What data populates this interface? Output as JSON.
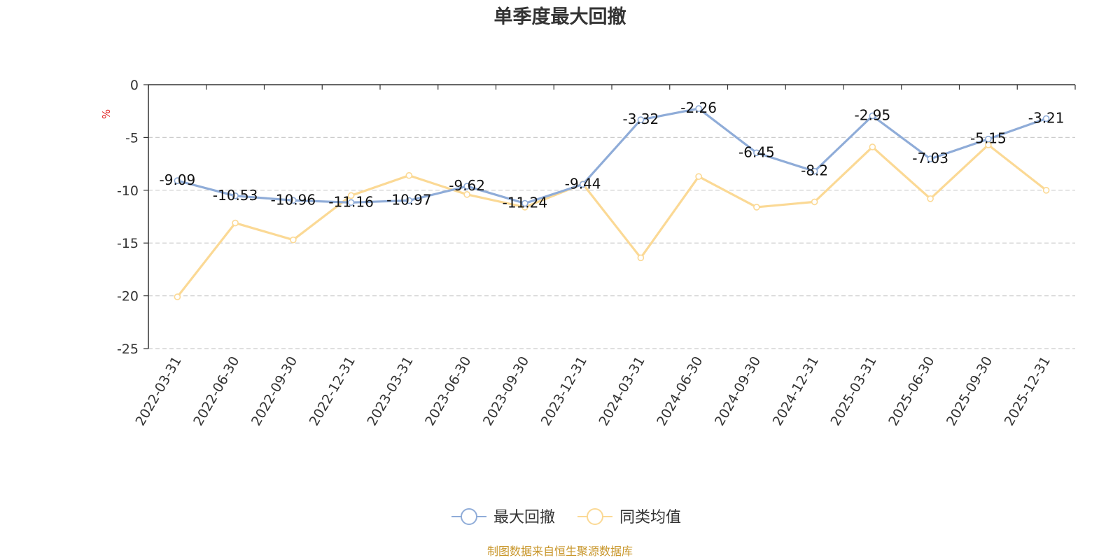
{
  "chart_data": {
    "type": "line",
    "title": "单季度最大回撤",
    "ylabel": "%",
    "xlabel": "",
    "ylim": [
      -25,
      0
    ],
    "yticks": [
      0,
      -5,
      -10,
      -15,
      -20,
      -25
    ],
    "ytick_labels": [
      "0",
      "-5",
      "-10",
      "-15",
      "-20",
      "-25"
    ],
    "grid": true,
    "legend_position": "bottom-center",
    "categories": [
      "2022-03-31",
      "2022-06-30",
      "2022-09-30",
      "2022-12-31",
      "2023-03-31",
      "2023-06-30",
      "2023-09-30",
      "2023-12-31",
      "2024-03-31",
      "2024-06-30",
      "2024-09-30",
      "2024-12-31",
      "2025-03-31",
      "2025-06-30",
      "2025-09-30",
      "2025-12-31"
    ],
    "series": [
      {
        "name": "最大回撤",
        "color": "#8facd8",
        "show_labels": true,
        "values": [
          -9.09,
          -10.53,
          -10.96,
          -11.16,
          -10.97,
          -9.62,
          -11.24,
          -9.44,
          -3.32,
          -2.26,
          -6.45,
          -8.2,
          -2.95,
          -7.03,
          -5.15,
          -3.21
        ],
        "labels": [
          "-9.09",
          "-10.53",
          "-10.96",
          "-11.16",
          "-10.97",
          "-9.62",
          "-11.24",
          "-9.44",
          "-3.32",
          "-2.26",
          "-6.45",
          "-8.2",
          "-2.95",
          "-7.03",
          "-5.15",
          "-3.21"
        ]
      },
      {
        "name": "同类均值",
        "color": "#fbd995",
        "show_labels": false,
        "values": [
          -20.1,
          -13.1,
          -14.7,
          -10.5,
          -8.6,
          -10.4,
          -11.6,
          -9.4,
          -16.4,
          -8.7,
          -11.6,
          -11.1,
          -5.9,
          -10.8,
          -5.7,
          -10.0
        ]
      }
    ],
    "source_note": "制图数据来自恒生聚源数据库"
  }
}
